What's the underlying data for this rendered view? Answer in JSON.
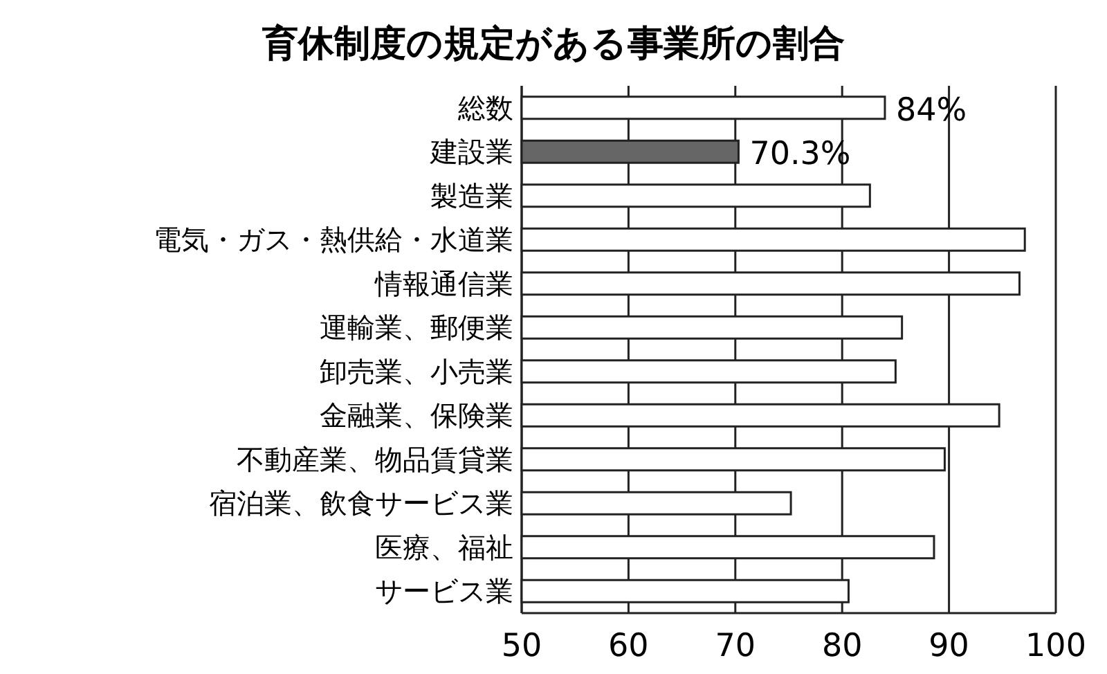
{
  "chart_data": {
    "type": "bar",
    "orientation": "horizontal",
    "title": "育休制度の規定がある事業所の割合",
    "categories": [
      "総数",
      "建設業",
      "製造業",
      "電気・ガス・熱供給・水道業",
      "情報通信業",
      "運輸業、郵便業",
      "卸売業、小売業",
      "金融業、保険業",
      "不動産業、物品賃貸業",
      "宿泊業、飲食サービス業",
      "医療、福祉",
      "サービス業"
    ],
    "values": [
      84,
      70.3,
      82.6,
      97.1,
      96.6,
      85.6,
      85.0,
      94.7,
      89.6,
      75.2,
      88.6,
      80.6
    ],
    "colors": [
      "#ffffff",
      "#666666",
      "#ffffff",
      "#ffffff",
      "#ffffff",
      "#ffffff",
      "#ffffff",
      "#ffffff",
      "#ffffff",
      "#ffffff",
      "#ffffff",
      "#ffffff"
    ],
    "value_labels": [
      "84%",
      "70.3%",
      null,
      null,
      null,
      null,
      null,
      null,
      null,
      null,
      null,
      null
    ],
    "xlim": [
      50,
      100
    ],
    "xticks": [
      50,
      60,
      70,
      80,
      90,
      100
    ],
    "grid": "x"
  }
}
